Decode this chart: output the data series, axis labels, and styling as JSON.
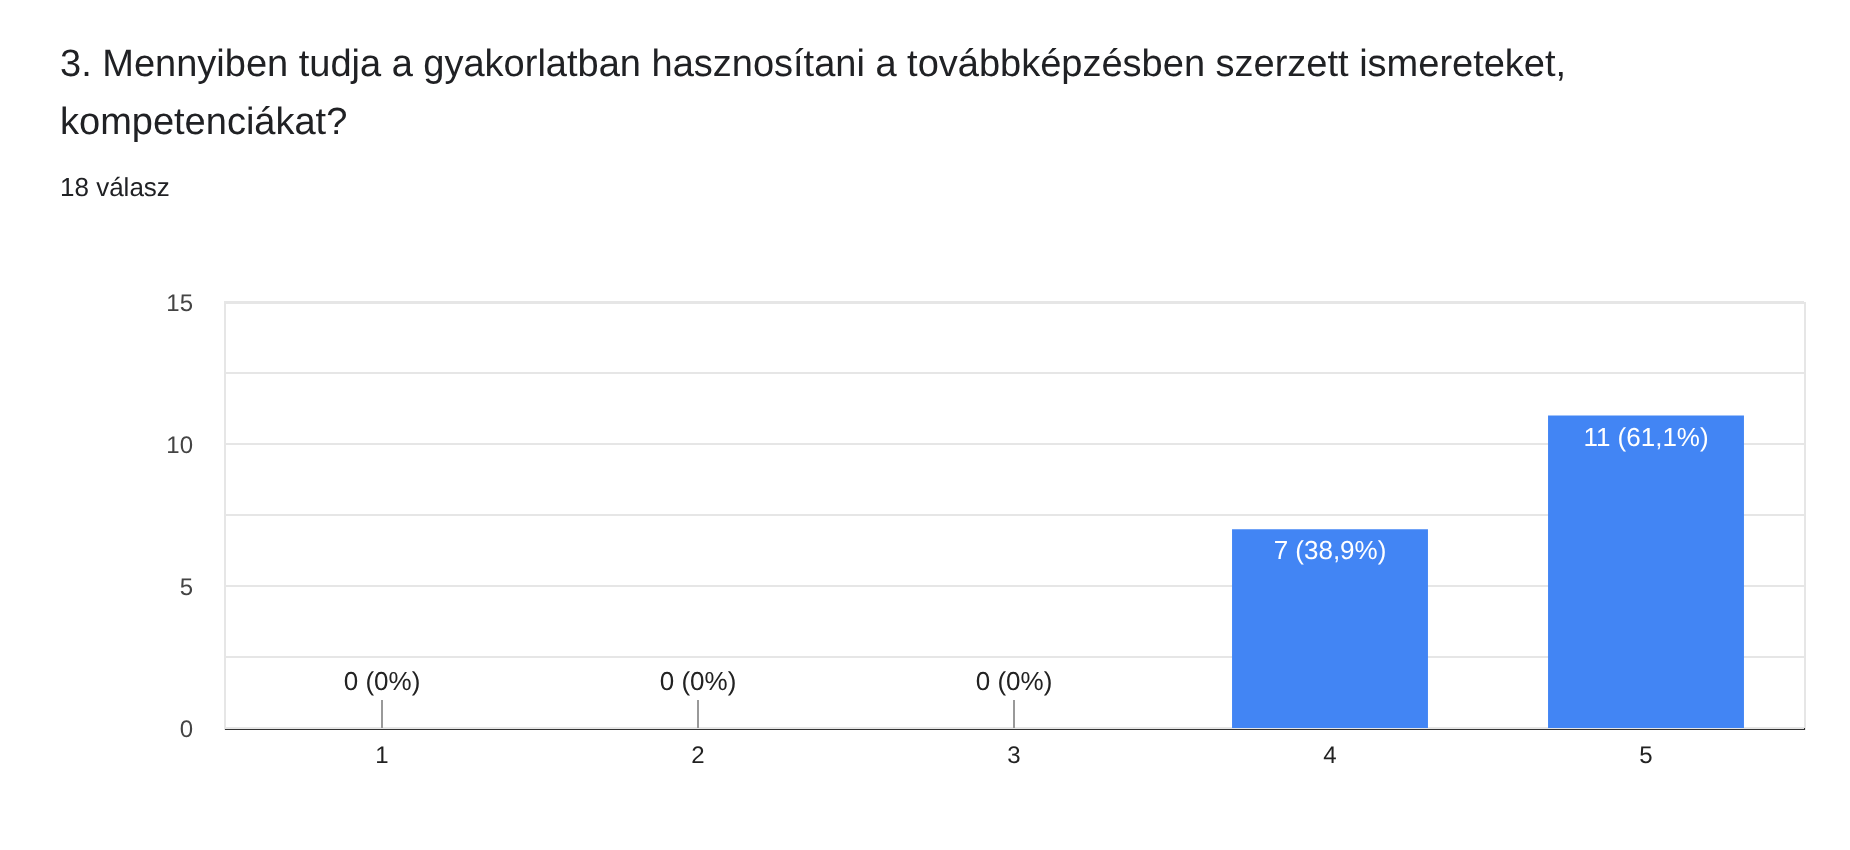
{
  "chart_data": {
    "type": "bar",
    "title": "3. Mennyiben tudja a gyakorlatban hasznosítani a továbbképzésben szerzett ismereteket, kompetenciákat?",
    "subtitle": "18 válasz",
    "categories": [
      "1",
      "2",
      "3",
      "4",
      "5"
    ],
    "values": [
      0,
      0,
      0,
      7,
      11
    ],
    "value_labels": [
      "0 (0%)",
      "0 (0%)",
      "0 (0%)",
      "7 (38,9%)",
      "11 (61,1%)"
    ],
    "color": "#4285f4",
    "ylim": [
      0,
      15
    ],
    "yticks": [
      0,
      {
        "value": 2.5,
        "label": null
      },
      5,
      {
        "value": 7.5,
        "label": null
      },
      10,
      {
        "value": 12.5,
        "label": null
      },
      15
    ],
    "grid": "y"
  }
}
